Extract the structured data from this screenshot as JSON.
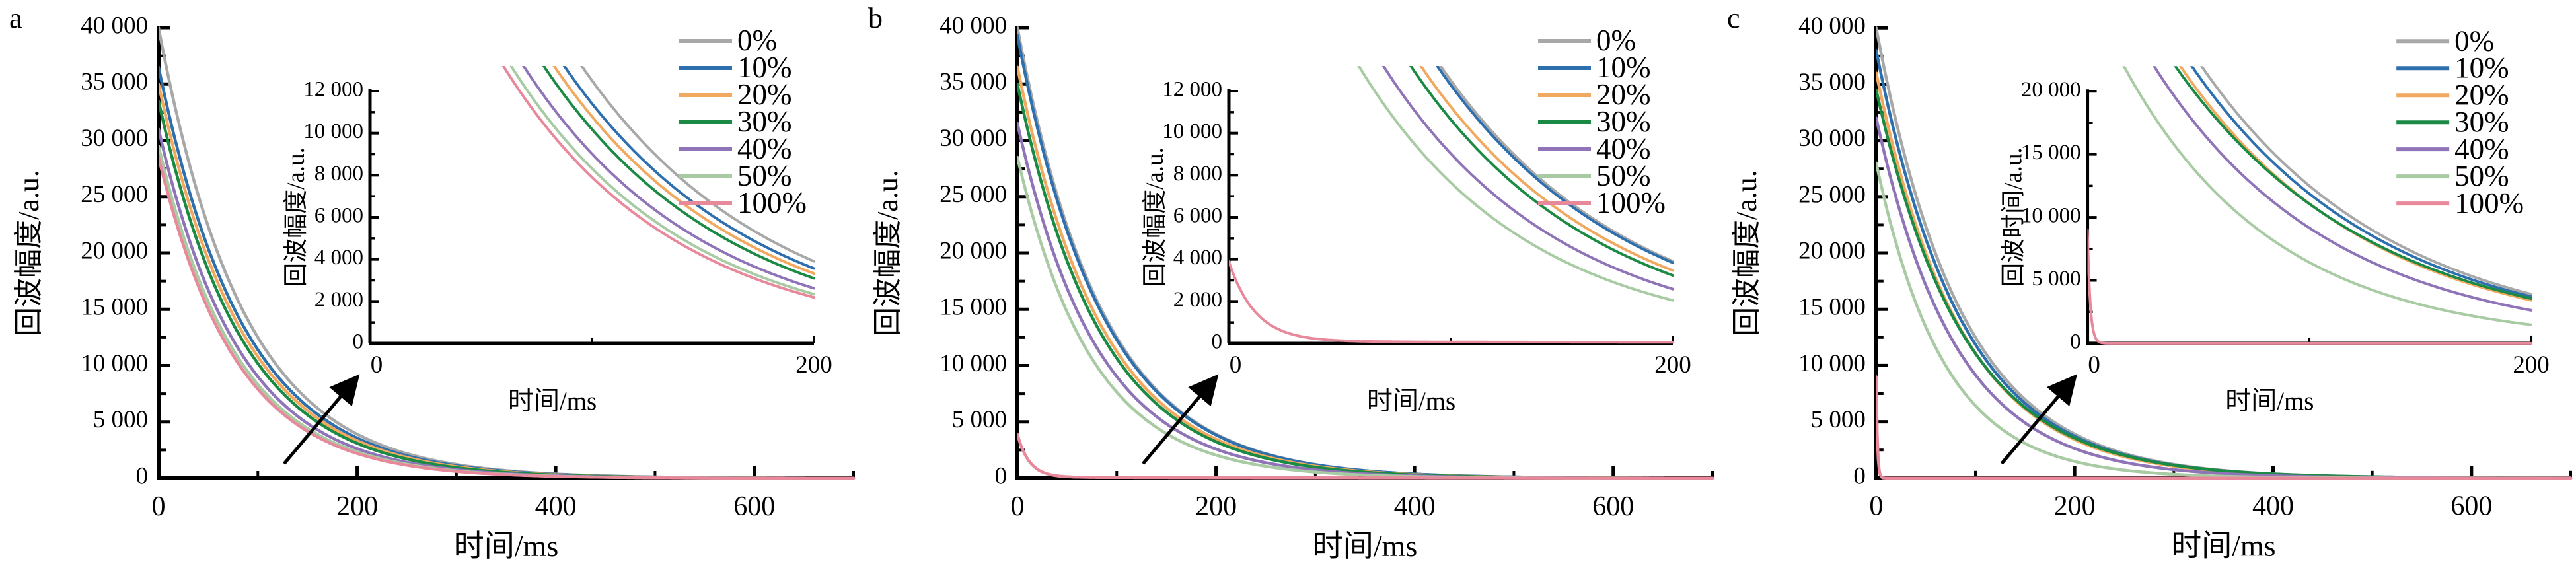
{
  "figure_title": "",
  "axis_color": "#000000",
  "chart_data": [
    {
      "type": "line",
      "panel_label": "a",
      "xlabel": "时间/ms",
      "ylabel": "回波幅度/a.u.",
      "xlim": [
        0,
        700
      ],
      "ylim": [
        0,
        40000
      ],
      "xticks": [
        0,
        200,
        400,
        600
      ],
      "xtick_labels": [
        "0",
        "200",
        "400",
        "600"
      ],
      "yticks": [
        0,
        5000,
        10000,
        15000,
        20000,
        25000,
        30000,
        35000,
        40000
      ],
      "ytick_labels": [
        "0",
        "5 000",
        "10 000",
        "15 000",
        "20 000",
        "25 000",
        "30 000",
        "35 000",
        "40 000"
      ],
      "legend_position": "top-right",
      "grid": false,
      "series": [
        {
          "name": "0%",
          "color": "#a8a8a8",
          "model": "A·e^(−t/τ)",
          "A": 40000,
          "tau_ms": 86,
          "t_samples": [
            0,
            100,
            200,
            400,
            600
          ],
          "y_samples": [
            40000,
            12504,
            3909,
            382,
            37
          ]
        },
        {
          "name": "10%",
          "color": "#2e6fae",
          "model": "A·e^(−t/τ)",
          "A": 36500,
          "tau_ms": 86,
          "t_samples": [
            0,
            100,
            200,
            400,
            600
          ],
          "y_samples": [
            36500,
            11410,
            3567,
            349,
            34
          ]
        },
        {
          "name": "20%",
          "color": "#f0a95e",
          "model": "A·e^(−t/τ)",
          "A": 35000,
          "tau_ms": 85,
          "t_samples": [
            0,
            100,
            200,
            400,
            600
          ],
          "y_samples": [
            35000,
            10794,
            3329,
            317,
            30
          ]
        },
        {
          "name": "30%",
          "color": "#1b8a44",
          "model": "A·e^(−t/τ)",
          "A": 33500,
          "tau_ms": 84,
          "t_samples": [
            0,
            100,
            200,
            400,
            600
          ],
          "y_samples": [
            33500,
            10194,
            3102,
            287,
            27
          ]
        },
        {
          "name": "40%",
          "color": "#8f74b8",
          "model": "A·e^(−t/τ)",
          "A": 31000,
          "tau_ms": 81,
          "t_samples": [
            0,
            100,
            200,
            400,
            600
          ],
          "y_samples": [
            31000,
            9021,
            2625,
            222,
            19
          ]
        },
        {
          "name": "50%",
          "color": "#a9cba4",
          "model": "A·e^(−t/τ)",
          "A": 29500,
          "tau_ms": 79,
          "t_samples": [
            0,
            100,
            200,
            400,
            600
          ],
          "y_samples": [
            29500,
            8319,
            2346,
            187,
            15
          ]
        },
        {
          "name": "100%",
          "color": "#e7899b",
          "model": "A·e^(−t/τ)",
          "A": 28500,
          "tau_ms": 78,
          "t_samples": [
            0,
            100,
            200,
            400,
            600
          ],
          "y_samples": [
            28500,
            7906,
            2193,
            169,
            13
          ]
        }
      ],
      "inset": {
        "xlabel": "时间/ms",
        "ylabel": "回波幅度/a.u.",
        "xlim": [
          0,
          200
        ],
        "ylim": [
          0,
          12000
        ],
        "xticks": [
          0,
          200
        ],
        "xtick_labels": [
          "0",
          "200"
        ],
        "yticks": [
          0,
          2000,
          4000,
          6000,
          8000,
          10000,
          12000
        ],
        "ytick_labels": [
          "0",
          "2 000",
          "4 000",
          "6 000",
          "8 000",
          "10 000",
          "12 000"
        ]
      }
    },
    {
      "type": "line",
      "panel_label": "b",
      "xlabel": "时间/ms",
      "ylabel": "回波幅度/a.u.",
      "xlim": [
        0,
        700
      ],
      "ylim": [
        0,
        40000
      ],
      "xticks": [
        0,
        200,
        400,
        600
      ],
      "xtick_labels": [
        "0",
        "200",
        "400",
        "600"
      ],
      "yticks": [
        0,
        5000,
        10000,
        15000,
        20000,
        25000,
        30000,
        35000,
        40000
      ],
      "ytick_labels": [
        "0",
        "5 000",
        "10 000",
        "15 000",
        "20 000",
        "25 000",
        "30 000",
        "35 000",
        "40 000"
      ],
      "legend_position": "top-right",
      "grid": false,
      "series": [
        {
          "name": "0%",
          "color": "#a8a8a8",
          "model": "A·e^(−t/τ)",
          "A": 40000,
          "tau_ms": 86,
          "t_samples": [
            0,
            100,
            200,
            400,
            600
          ],
          "y_samples": [
            40000,
            12504,
            3909,
            382,
            37
          ]
        },
        {
          "name": "10%",
          "color": "#2e6fae",
          "model": "A·e^(−t/τ)",
          "A": 39300,
          "tau_ms": 86,
          "t_samples": [
            0,
            100,
            200,
            400,
            600
          ],
          "y_samples": [
            39300,
            12286,
            3841,
            375,
            37
          ]
        },
        {
          "name": "20%",
          "color": "#f0a95e",
          "model": "A·e^(−t/τ)",
          "A": 36500,
          "tau_ms": 85,
          "t_samples": [
            0,
            100,
            200,
            400,
            600
          ],
          "y_samples": [
            36500,
            11257,
            3472,
            330,
            31
          ]
        },
        {
          "name": "30%",
          "color": "#1b8a44",
          "model": "A·e^(−t/τ)",
          "A": 35000,
          "tau_ms": 84,
          "t_samples": [
            0,
            100,
            200,
            400,
            600
          ],
          "y_samples": [
            35000,
            10650,
            3241,
            300,
            28
          ]
        },
        {
          "name": "40%",
          "color": "#8f74b8",
          "model": "A·e^(−t/τ)",
          "A": 31500,
          "tau_ms": 80,
          "t_samples": [
            0,
            100,
            200,
            400,
            600
          ],
          "y_samples": [
            31500,
            9025,
            2586,
            212,
            17
          ]
        },
        {
          "name": "50%",
          "color": "#a9cba4",
          "model": "A·e^(−t/τ)",
          "A": 28500,
          "tau_ms": 76,
          "t_samples": [
            0,
            100,
            200,
            400,
            600
          ],
          "y_samples": [
            28500,
            7644,
            2050,
            147,
            11
          ]
        },
        {
          "name": "100%",
          "color": "#e7899b",
          "model": "A·e^(−t/τ)+A2·e^(−t/τ2)",
          "A": 3800,
          "tau_ms": 12,
          "A2": 90,
          "tau2_ms": 400,
          "t_samples": [
            0,
            50,
            100,
            200,
            400,
            600
          ],
          "y_samples": [
            3890,
            138,
            71,
            55,
            33,
            20
          ]
        }
      ],
      "inset": {
        "xlabel": "时间/ms",
        "ylabel": "回波幅度/a.u.",
        "xlim": [
          0,
          200
        ],
        "ylim": [
          0,
          12000
        ],
        "xticks": [
          0,
          200
        ],
        "xtick_labels": [
          "0",
          "200"
        ],
        "yticks": [
          0,
          2000,
          4000,
          6000,
          8000,
          10000,
          12000
        ],
        "ytick_labels": [
          "0",
          "2 000",
          "4 000",
          "6 000",
          "8 000",
          "10 000",
          "12 000"
        ]
      }
    },
    {
      "type": "line",
      "panel_label": "c",
      "xlabel": "时间/ms",
      "ylabel": "回波幅度/a.u.",
      "xlim": [
        0,
        700
      ],
      "ylim": [
        0,
        40000
      ],
      "xticks": [
        0,
        200,
        400,
        600
      ],
      "xtick_labels": [
        "0",
        "200",
        "400",
        "600"
      ],
      "yticks": [
        0,
        5000,
        10000,
        15000,
        20000,
        25000,
        30000,
        35000,
        40000
      ],
      "ytick_labels": [
        "0",
        "5 000",
        "10 000",
        "15 000",
        "20 000",
        "25 000",
        "30 000",
        "35 000",
        "40 000"
      ],
      "legend_position": "top-right",
      "grid": false,
      "series": [
        {
          "name": "0%",
          "color": "#a8a8a8",
          "model": "A·e^(−t/τ)",
          "A": 40000,
          "tau_ms": 86,
          "t_samples": [
            0,
            100,
            200,
            400,
            600
          ],
          "y_samples": [
            40000,
            12504,
            3909,
            382,
            37
          ]
        },
        {
          "name": "10%",
          "color": "#2e6fae",
          "model": "A·e^(−t/τ)",
          "A": 38000,
          "tau_ms": 86,
          "t_samples": [
            0,
            100,
            200,
            400,
            600
          ],
          "y_samples": [
            38000,
            11879,
            3714,
            363,
            35
          ]
        },
        {
          "name": "20%",
          "color": "#f0a95e",
          "model": "A·e^(−t/τ)",
          "A": 36000,
          "tau_ms": 85,
          "t_samples": [
            0,
            100,
            200,
            400,
            600
          ],
          "y_samples": [
            36000,
            11103,
            3424,
            326,
            31
          ]
        },
        {
          "name": "30%",
          "color": "#1b8a44",
          "model": "A·e^(−t/τ)",
          "A": 34500,
          "tau_ms": 88,
          "t_samples": [
            0,
            100,
            200,
            400,
            600
          ],
          "y_samples": [
            34500,
            11074,
            3554,
            367,
            38
          ]
        },
        {
          "name": "40%",
          "color": "#8f74b8",
          "model": "A·e^(−t/τ)",
          "A": 32000,
          "tau_ms": 80,
          "t_samples": [
            0,
            100,
            200,
            400,
            600
          ],
          "y_samples": [
            32000,
            9168,
            2627,
            216,
            18
          ]
        },
        {
          "name": "50%",
          "color": "#a9cba4",
          "model": "A·e^(−t/τ)",
          "A": 28000,
          "tau_ms": 68,
          "t_samples": [
            0,
            100,
            200,
            400,
            600
          ],
          "y_samples": [
            28000,
            6434,
            1478,
            78,
            4
          ]
        },
        {
          "name": "100%",
          "color": "#e7899b",
          "model": "A·e^(−t/τ)",
          "A": 9000,
          "tau_ms": 1.2,
          "t_samples": [
            0,
            5,
            10,
            100,
            200,
            600
          ],
          "y_samples": [
            9000,
            140,
            2,
            0,
            0,
            0
          ]
        }
      ],
      "inset": {
        "xlabel": "时间/ms",
        "ylabel": "回波时间/a.u.",
        "xlim": [
          0,
          200
        ],
        "ylim": [
          0,
          20000
        ],
        "xticks": [
          0,
          200
        ],
        "xtick_labels": [
          "0",
          "200"
        ],
        "yticks": [
          0,
          5000,
          10000,
          15000,
          20000
        ],
        "ytick_labels": [
          "0",
          "5 000",
          "10 000",
          "15 000",
          "20 000"
        ]
      }
    }
  ]
}
